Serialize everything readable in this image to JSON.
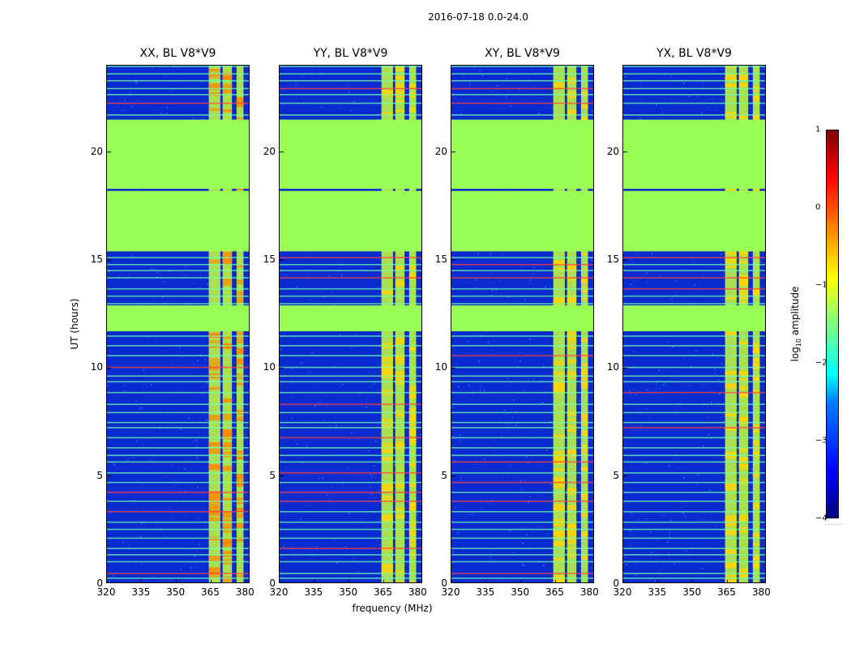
{
  "chart_data": {
    "type": "heatmap",
    "suptitle": "2016-07-18 0.0-24.0",
    "xlabel": "frequency (MHz)",
    "ylabel": "UT (hours)",
    "xlim": [
      320,
      382
    ],
    "ylim": [
      0,
      24
    ],
    "xticks": [
      320,
      335,
      350,
      365,
      380
    ],
    "yticks": [
      0,
      5,
      10,
      15,
      20
    ],
    "panels": [
      {
        "title": "XX, BL V8*V9",
        "show_ylabel": true
      },
      {
        "title": "YY, BL V8*V9",
        "show_ylabel": false
      },
      {
        "title": "XY, BL V8*V9",
        "show_ylabel": false
      },
      {
        "title": "YX, BL V8*V9",
        "show_ylabel": false
      }
    ],
    "colorbar": {
      "label_prefix": "log",
      "label_sub": "10",
      "label_suffix": " amplitude",
      "range": [
        -4,
        1
      ],
      "ticks": [
        1,
        0,
        -1,
        -2,
        -3,
        -4
      ],
      "tick_labels": [
        "1",
        "0",
        "−1",
        "−2",
        "−3",
        "−4"
      ],
      "colormap": "jet"
    },
    "flagged_ut_ranges": [
      [
        11.7,
        12.9
      ],
      [
        15.4,
        18.2
      ],
      [
        18.3,
        21.5
      ]
    ],
    "bright_band_mhz": [
      [
        364,
        369
      ],
      [
        370,
        374
      ],
      [
        376,
        379
      ]
    ],
    "background_log_amplitude": -2.8,
    "flagged_log_amplitude": -1.2
  },
  "colors": {
    "background": "#0a2bcf",
    "flag": "#99ff55",
    "band": "#c8ff3c",
    "hot": "#ff8800",
    "line": "#6fffb0"
  }
}
